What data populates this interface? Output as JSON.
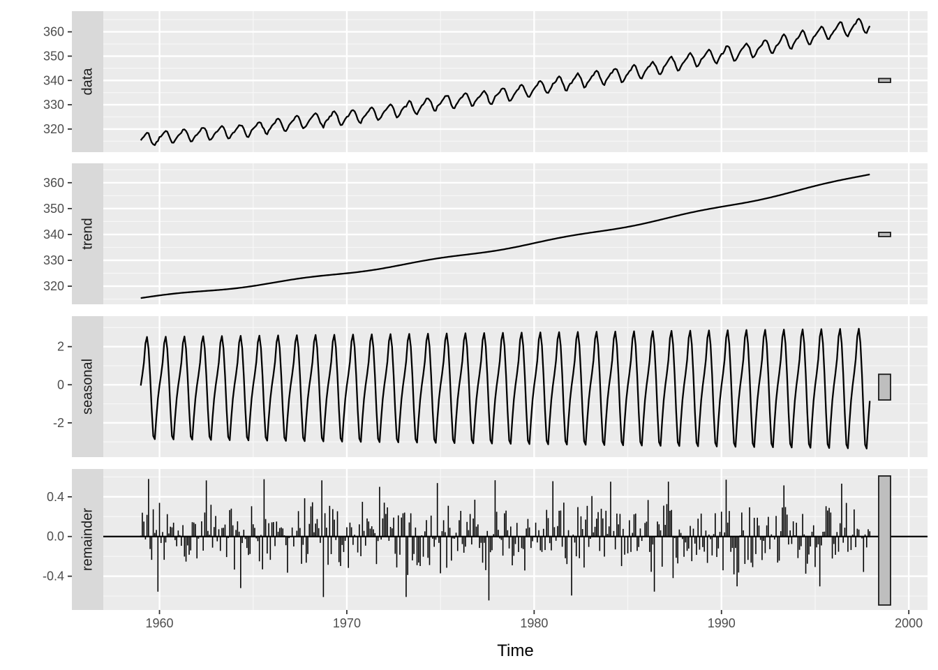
{
  "chart_data": {
    "type": "line",
    "description_of_layout": "",
    "xlabel": "Time",
    "xlim": [
      1957,
      2001
    ],
    "x_ticks": [
      "1960",
      "1970",
      "1980",
      "1990",
      "2000"
    ],
    "x_tick_values": [
      1960,
      1970,
      1980,
      1990,
      2000
    ],
    "start": 1959,
    "end": 1997.917,
    "frequency": 12,
    "panels": [
      {
        "name": "data",
        "ylim": [
          310.5,
          368.5
        ],
        "y_ticks": [
          "320",
          "330",
          "340",
          "350",
          "360"
        ],
        "y_tick_values": [
          320,
          330,
          340,
          350,
          360
        ],
        "series_kind": "line",
        "scale_bar": [
          339.2,
          340.8
        ],
        "values": []
      },
      {
        "name": "trend",
        "ylim": [
          313.0,
          367.5
        ],
        "y_ticks": [
          "320",
          "330",
          "340",
          "350",
          "360"
        ],
        "y_tick_values": [
          320,
          330,
          340,
          350,
          360
        ],
        "series_kind": "line",
        "scale_bar": [
          339.2,
          340.8
        ],
        "values": []
      },
      {
        "name": "seasonal",
        "ylim": [
          -3.8,
          3.6
        ],
        "y_ticks": [
          "2",
          "0",
          "-2"
        ],
        "y_tick_values": [
          2,
          0,
          -2
        ],
        "series_kind": "line",
        "scale_bar": [
          -0.8,
          0.55
        ],
        "values": []
      },
      {
        "name": "remainder",
        "ylim": [
          -0.74,
          0.68
        ],
        "y_ticks": [
          "0.4",
          "0.0",
          "-0.4"
        ],
        "y_tick_values": [
          0.4,
          0.0,
          -0.4
        ],
        "series_kind": "bars_from_zero",
        "scale_bar": [
          -0.69,
          0.61
        ],
        "values": []
      }
    ],
    "grid": true,
    "legend": "none",
    "colors": {
      "panel_bg": "#ebebeb",
      "grid_major": "#ffffff",
      "strip_bg": "#d9d9d9",
      "line": "#000000",
      "scale_bar_fill": "#bebebe"
    }
  }
}
